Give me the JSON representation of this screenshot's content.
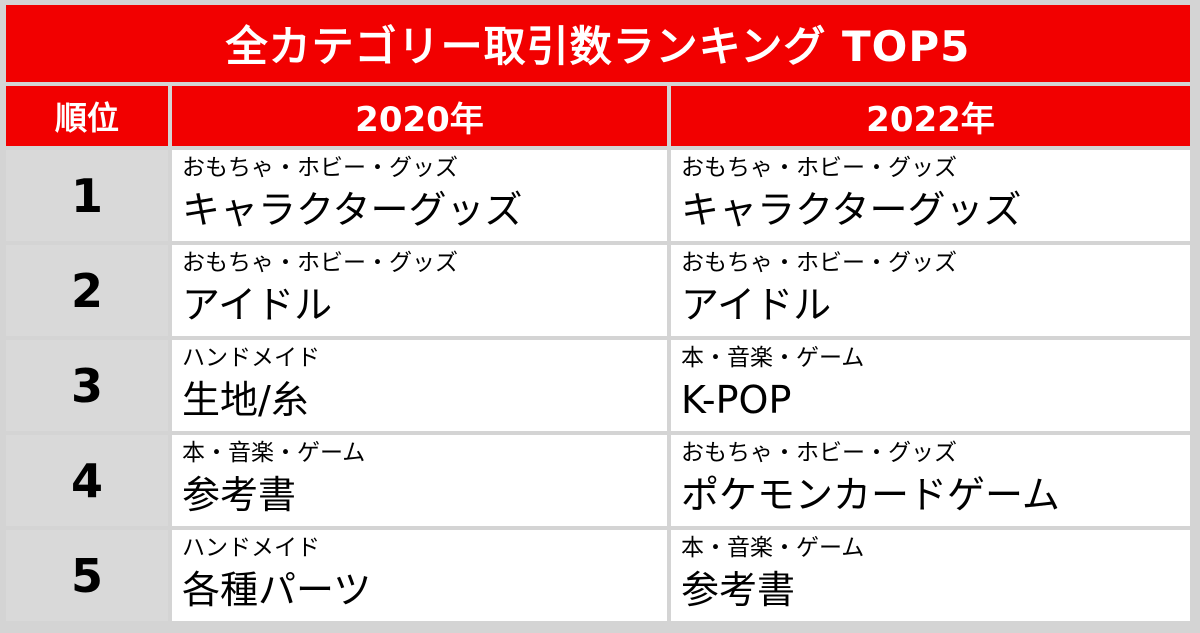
{
  "title": "全カテゴリー取引数ランキング TOP5",
  "header": {
    "rank": "順位",
    "year1": "2020年",
    "year2": "2022年"
  },
  "rows": [
    {
      "rank": "1",
      "y2020": {
        "category": "おもちゃ・ホビー・グッズ",
        "item": "キャラクターグッズ"
      },
      "y2022": {
        "category": "おもちゃ・ホビー・グッズ",
        "item": "キャラクターグッズ"
      }
    },
    {
      "rank": "2",
      "y2020": {
        "category": "おもちゃ・ホビー・グッズ",
        "item": "アイドル"
      },
      "y2022": {
        "category": "おもちゃ・ホビー・グッズ",
        "item": "アイドル"
      }
    },
    {
      "rank": "3",
      "y2020": {
        "category": "ハンドメイド",
        "item": "生地/糸"
      },
      "y2022": {
        "category": "本・音楽・ゲーム",
        "item": "K-POP"
      }
    },
    {
      "rank": "4",
      "y2020": {
        "category": "本・音楽・ゲーム",
        "item": "参考書"
      },
      "y2022": {
        "category": "おもちゃ・ホビー・グッズ",
        "item": "ポケモンカードゲーム"
      }
    },
    {
      "rank": "5",
      "y2020": {
        "category": "ハンドメイド",
        "item": "各種パーツ"
      },
      "y2022": {
        "category": "本・音楽・ゲーム",
        "item": "参考書"
      }
    }
  ],
  "colors": {
    "header_red": "#f20000",
    "rank_gray": "#d9d9d9",
    "grid": "#d4d4d4"
  }
}
